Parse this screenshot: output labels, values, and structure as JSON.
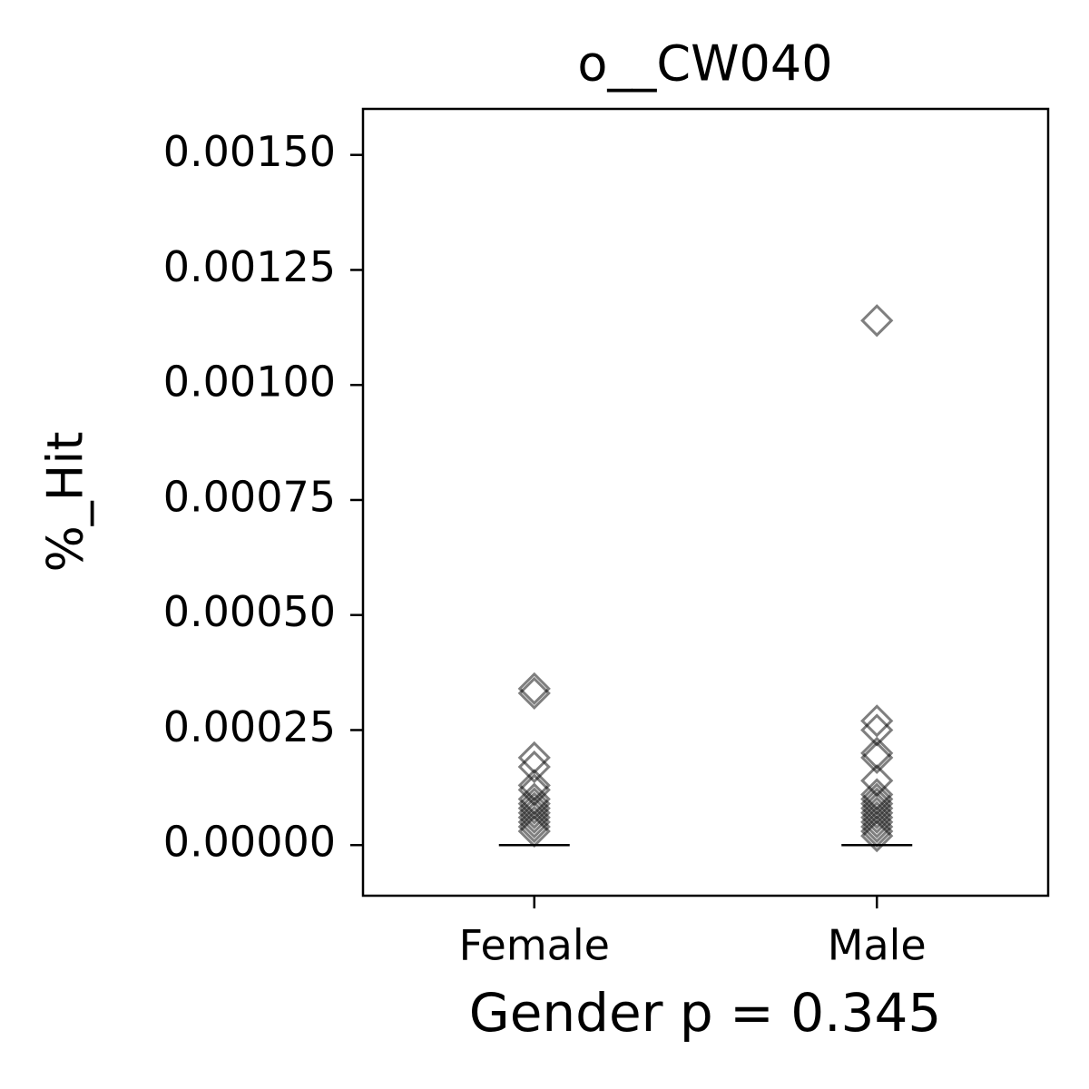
{
  "chart_data": {
    "type": "strip",
    "title": "o__CW040",
    "x_label": "Gender p = 0.345",
    "y_label": "%_Hit",
    "categories": [
      "Female",
      "Male"
    ],
    "groups": [
      {
        "values": [
          0.00034,
          0.00033,
          0.00019,
          0.00017,
          0.00013,
          0.00012,
          0.0001,
          9e-05,
          8e-05,
          7e-05,
          6e-05,
          5e-05,
          4e-05,
          3e-05
        ]
      },
      {
        "values": [
          0.00114,
          0.00027,
          0.00025,
          0.0002,
          0.00019,
          0.00014,
          0.00011,
          0.0001,
          9e-05,
          8e-05,
          7e-05,
          6e-05,
          5e-05,
          4e-05,
          3e-05,
          2e-05
        ]
      }
    ],
    "medians": [
      0,
      0
    ],
    "color": "#000000",
    "ylim": [
      -0.00011,
      0.0016
    ],
    "yticks": [
      {
        "value": 0,
        "label": "0.00000"
      },
      {
        "value": 0.00025,
        "label": "0.00025"
      },
      {
        "value": 0.0005,
        "label": "0.00050"
      },
      {
        "value": 0.00075,
        "label": "0.00075"
      },
      {
        "value": 0.001,
        "label": "0.00100"
      },
      {
        "value": 0.00125,
        "label": "0.00125"
      },
      {
        "value": 0.0015,
        "label": "0.00150"
      }
    ]
  }
}
